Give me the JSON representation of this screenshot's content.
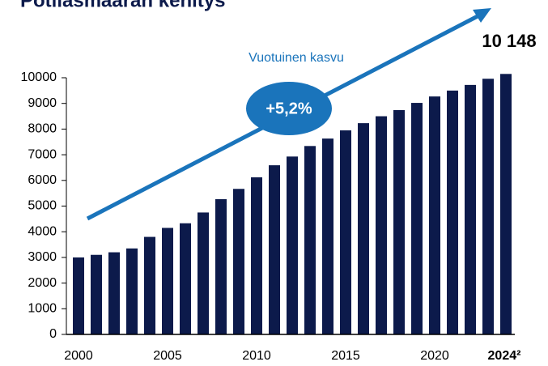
{
  "chart_data": {
    "type": "bar",
    "title": "Potilasmäärän kehitys",
    "categories": [
      "2000",
      null,
      null,
      null,
      null,
      "2005",
      null,
      null,
      null,
      null,
      "2010",
      null,
      null,
      null,
      null,
      "2015",
      null,
      null,
      null,
      null,
      "2020",
      null,
      null,
      null,
      "2024²"
    ],
    "values": [
      3000,
      3100,
      3200,
      3350,
      3800,
      4150,
      4330,
      4750,
      5270,
      5670,
      6120,
      6590,
      6930,
      7340,
      7630,
      7950,
      8230,
      8500,
      8740,
      9020,
      9270,
      9500,
      9720,
      9960,
      10148
    ],
    "value_labels": [
      null,
      null,
      null,
      null,
      null,
      null,
      null,
      null,
      null,
      null,
      null,
      null,
      null,
      null,
      null,
      null,
      null,
      null,
      null,
      null,
      null,
      null,
      null,
      null,
      "10 148"
    ],
    "color": "#0c1a4b",
    "ylim": [
      0,
      10000
    ],
    "yticks": [
      0,
      1000,
      2000,
      3000,
      4000,
      5000,
      6000,
      7000,
      8000,
      9000,
      10000
    ],
    "annotations": [
      "Vuotuinen kasvu",
      "+5,2%"
    ],
    "annotation_color": "#1a74bb"
  }
}
